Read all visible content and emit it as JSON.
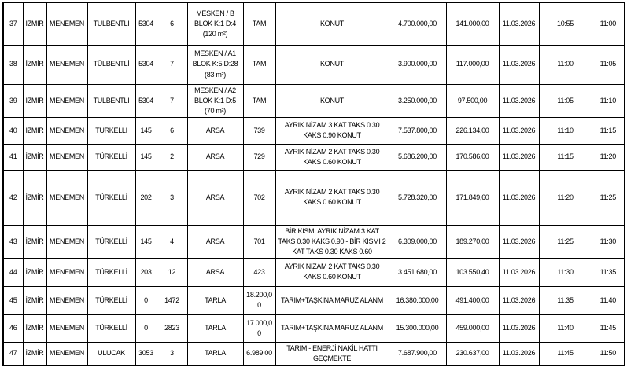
{
  "table": {
    "rows": [
      {
        "no": "37",
        "il": "İZMİR",
        "ilce": "MENEMEN",
        "mahalle": "TÜLBENTLİ",
        "ada": "5304",
        "parsel": "6",
        "nitelik": "MESKEN / B\nBLOK K:1 D:4\n(120 m²)",
        "yuzolcumu": "TAM",
        "imar_durumu": "KONUT",
        "bedel": "4.700.000,00",
        "teminat": "141.000,00",
        "tarih": "11.03.2026",
        "baslangic": "10:55",
        "bitis": "11:00"
      },
      {
        "no": "38",
        "il": "İZMİR",
        "ilce": "MENEMEN",
        "mahalle": "TÜLBENTLİ",
        "ada": "5304",
        "parsel": "7",
        "nitelik": "MESKEN / A1\nBLOK K:5 D:28\n(83 m²)",
        "yuzolcumu": "TAM",
        "imar_durumu": "KONUT",
        "bedel": "3.900.000,00",
        "teminat": "117.000,00",
        "tarih": "11.03.2026",
        "baslangic": "11:00",
        "bitis": "11:05"
      },
      {
        "no": "39",
        "il": "İZMİR",
        "ilce": "MENEMEN",
        "mahalle": "TÜLBENTLİ",
        "ada": "5304",
        "parsel": "7",
        "nitelik": "MESKEN / A2\nBLOK K:1 D:5\n(70 m²)",
        "yuzolcumu": "TAM",
        "imar_durumu": "KONUT",
        "bedel": "3.250.000,00",
        "teminat": "97.500,00",
        "tarih": "11.03.2026",
        "baslangic": "11:05",
        "bitis": "11:10"
      },
      {
        "no": "40",
        "il": "İZMİR",
        "ilce": "MENEMEN",
        "mahalle": "TÜRKELLİ",
        "ada": "145",
        "parsel": "6",
        "nitelik": "ARSA",
        "yuzolcumu": "739",
        "imar_durumu": "AYRIK NİZAM 3 KAT TAKS 0.30 KAKS 0.90 KONUT",
        "bedel": "7.537.800,00",
        "teminat": "226.134,00",
        "tarih": "11.03.2026",
        "baslangic": "11:10",
        "bitis": "11:15"
      },
      {
        "no": "41",
        "il": "İZMİR",
        "ilce": "MENEMEN",
        "mahalle": "TÜRKELLİ",
        "ada": "145",
        "parsel": "2",
        "nitelik": "ARSA",
        "yuzolcumu": "729",
        "imar_durumu": "AYRIK NİZAM 2 KAT TAKS 0.30 KAKS 0.60 KONUT",
        "bedel": "5.686.200,00",
        "teminat": "170.586,00",
        "tarih": "11.03.2026",
        "baslangic": "11:15",
        "bitis": "11:20"
      },
      {
        "no": "42",
        "il": "İZMİR",
        "ilce": "MENEMEN",
        "mahalle": "TÜRKELLİ",
        "ada": "202",
        "parsel": "3",
        "nitelik": "ARSA",
        "yuzolcumu": "702",
        "imar_durumu": "AYRIK NİZAM 2 KAT TAKS 0.30 KAKS 0.60 KONUT",
        "bedel": "5.728.320,00",
        "teminat": "171.849,60",
        "tarih": "11.03.2026",
        "baslangic": "11:20",
        "bitis": "11:25"
      },
      {
        "no": "43",
        "il": "İZMİR",
        "ilce": "MENEMEN",
        "mahalle": "TÜRKELLİ",
        "ada": "145",
        "parsel": "4",
        "nitelik": "ARSA",
        "yuzolcumu": "701",
        "imar_durumu": "BİR KISMI AYRIK NİZAM 3 KAT TAKS 0.30 KAKS 0.90 - BİR KISMI 2 KAT TAKS 0.30 KAKS 0.60",
        "bedel": "6.309.000,00",
        "teminat": "189.270,00",
        "tarih": "11.03.2026",
        "baslangic": "11:25",
        "bitis": "11:30"
      },
      {
        "no": "44",
        "il": "İZMİR",
        "ilce": "MENEMEN",
        "mahalle": "TÜRKELLİ",
        "ada": "203",
        "parsel": "12",
        "nitelik": "ARSA",
        "yuzolcumu": "423",
        "imar_durumu": "AYRIK NİZAM 2 KAT TAKS 0.30 KAKS 0.60 KONUT",
        "bedel": "3.451.680,00",
        "teminat": "103.550,40",
        "tarih": "11.03.2026",
        "baslangic": "11:30",
        "bitis": "11:35"
      },
      {
        "no": "45",
        "il": "İZMİR",
        "ilce": "MENEMEN",
        "mahalle": "TÜRKELLİ",
        "ada": "0",
        "parsel": "1472",
        "nitelik": "TARLA",
        "yuzolcumu": "18.200,00",
        "imar_durumu": "TARIM+TAŞKINA MARUZ ALANM",
        "bedel": "16.380.000,00",
        "teminat": "491.400,00",
        "tarih": "11.03.2026",
        "baslangic": "11:35",
        "bitis": "11:40"
      },
      {
        "no": "46",
        "il": "İZMİR",
        "ilce": "MENEMEN",
        "mahalle": "TÜRKELLİ",
        "ada": "0",
        "parsel": "2823",
        "nitelik": "TARLA",
        "yuzolcumu": "17.000,00",
        "imar_durumu": "TARIM+TAŞKINA MARUZ ALANM",
        "bedel": "15.300.000,00",
        "teminat": "459.000,00",
        "tarih": "11.03.2026",
        "baslangic": "11:40",
        "bitis": "11:45"
      },
      {
        "no": "47",
        "il": "İZMİR",
        "ilce": "MENEMEN",
        "mahalle": "ULUCAK",
        "ada": "3053",
        "parsel": "3",
        "nitelik": "TARLA",
        "yuzolcumu": "6.989,00",
        "imar_durumu": "TARIM - ENERJİ NAKİL HATTI GEÇMEKTE",
        "bedel": "7.687.900,00",
        "teminat": "230.637,00",
        "tarih": "11.03.2026",
        "baslangic": "11:45",
        "bitis": "11:50"
      }
    ]
  }
}
